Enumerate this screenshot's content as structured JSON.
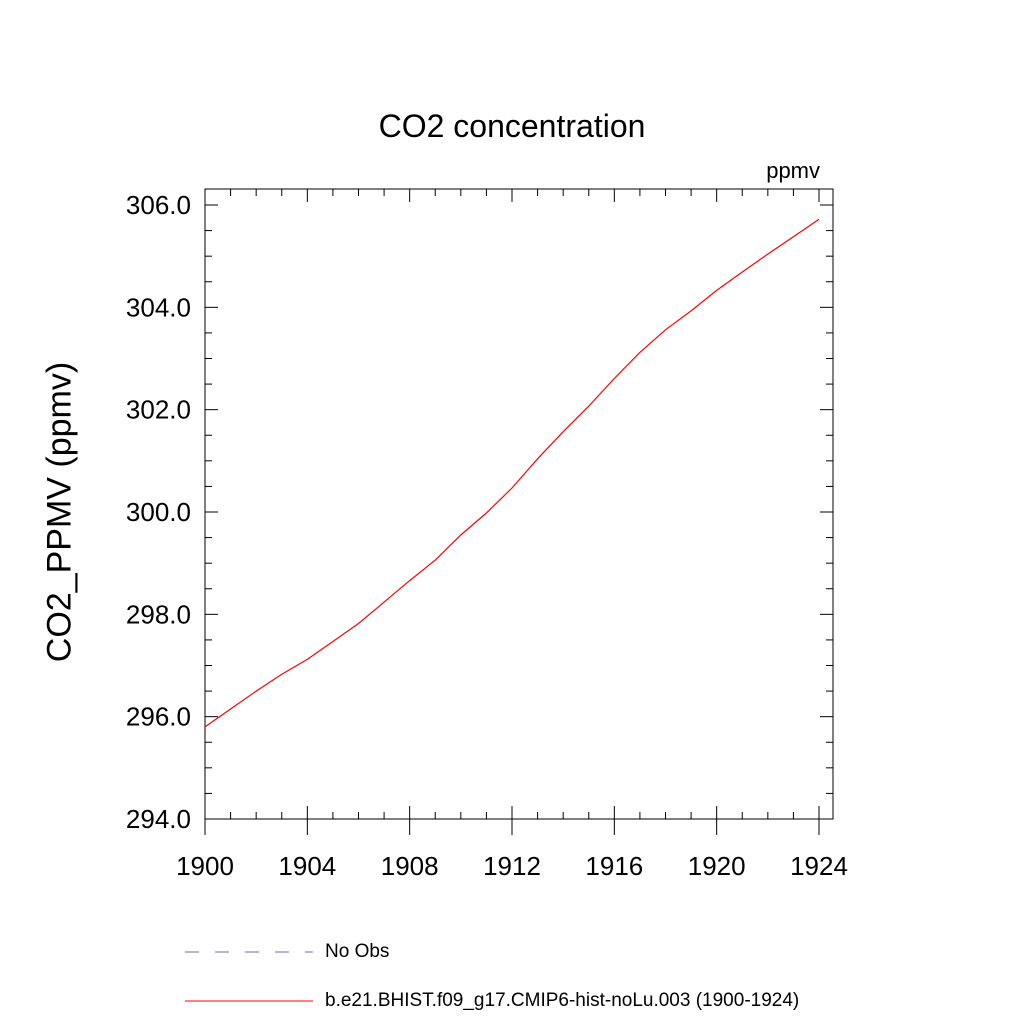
{
  "chart_data": {
    "type": "line",
    "title": "CO2 concentration",
    "units": "ppmv",
    "ylabel": "CO2_PPMV  (ppmv)",
    "xlabel": "",
    "xlim": [
      1900,
      1924
    ],
    "ylim": [
      294.0,
      306.0
    ],
    "x_ticks": [
      "1900",
      "1904",
      "1908",
      "1912",
      "1916",
      "1920",
      "1924"
    ],
    "y_ticks": [
      "294.0",
      "296.0",
      "298.0",
      "300.0",
      "302.0",
      "304.0",
      "306.0"
    ],
    "grid": false,
    "legend_position": "bottom",
    "series": [
      {
        "name": "No Obs",
        "color": "#6b6bbf",
        "dash": "dashed",
        "x": [],
        "y": []
      },
      {
        "name": "b.e21.BHIST.f09_g17.CMIP6-hist-noLu.003 (1900-1924)",
        "color": "#ff0000",
        "dash": "solid",
        "x": [
          1900,
          1901,
          1902,
          1903,
          1904,
          1905,
          1906,
          1907,
          1908,
          1909,
          1910,
          1911,
          1912,
          1913,
          1914,
          1915,
          1916,
          1917,
          1918,
          1919,
          1920,
          1921,
          1922,
          1923,
          1924
        ],
        "y": [
          295.8,
          296.15,
          296.5,
          296.83,
          297.12,
          297.47,
          297.82,
          298.24,
          298.66,
          299.06,
          299.55,
          299.98,
          300.47,
          301.04,
          301.57,
          302.07,
          302.61,
          303.12,
          303.56,
          303.93,
          304.33,
          304.69,
          305.04,
          305.38,
          305.72
        ]
      }
    ]
  }
}
